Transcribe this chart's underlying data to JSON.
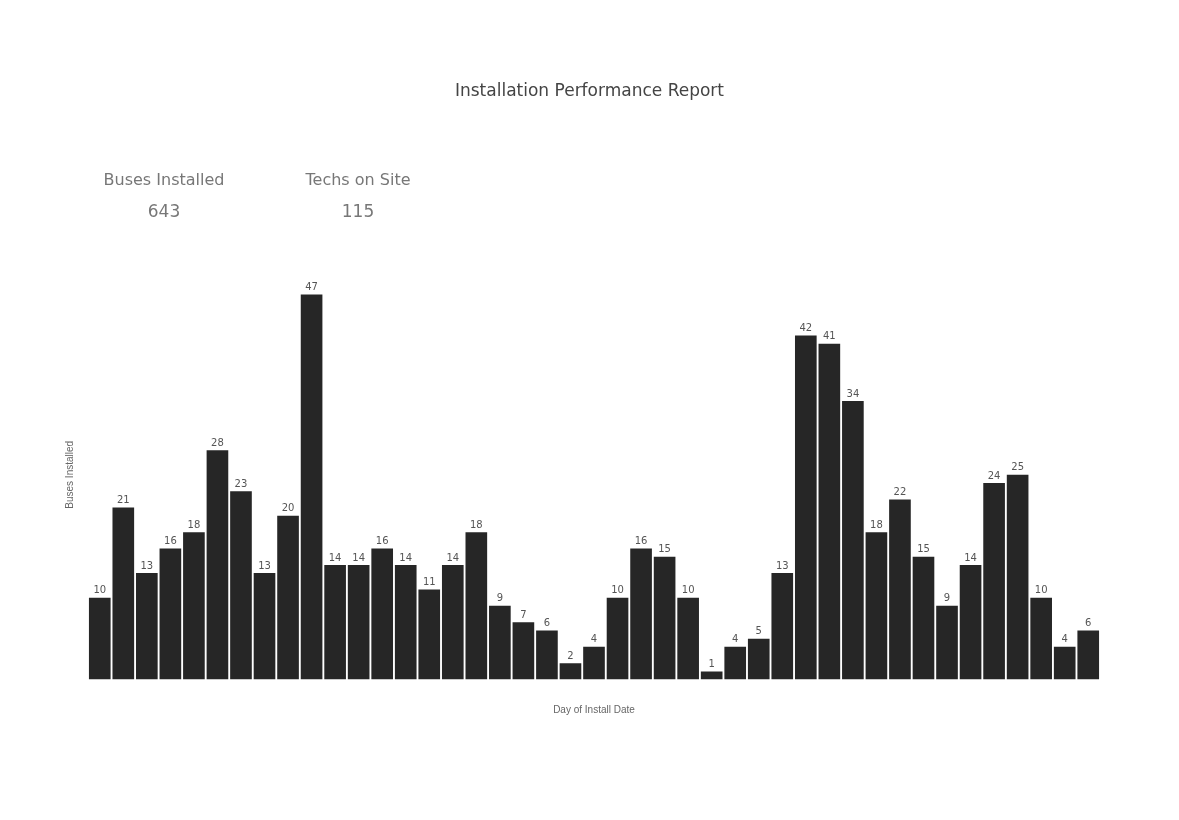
{
  "chart_data": {
    "type": "bar",
    "title": "Installation Performance Report",
    "xlabel": "Day of Install Date",
    "ylabel": "Buses Installed",
    "annotations": [
      "Buses Installed",
      "643",
      "Techs on Site",
      "115"
    ],
    "categories": [
      null,
      null,
      null,
      null,
      null,
      null,
      null,
      null,
      null,
      null,
      null,
      null,
      null,
      null,
      null,
      null,
      null,
      null,
      null,
      null,
      null,
      null,
      null,
      null,
      null,
      null,
      null,
      null,
      null,
      null,
      null,
      null,
      null,
      null,
      null,
      null,
      null,
      null,
      null,
      null,
      null,
      null,
      null
    ],
    "values": [
      10,
      21,
      13,
      16,
      18,
      28,
      23,
      13,
      20,
      47,
      14,
      14,
      16,
      14,
      11,
      14,
      18,
      9,
      7,
      6,
      2,
      4,
      10,
      16,
      15,
      10,
      1,
      4,
      5,
      13,
      42,
      41,
      34,
      18,
      22,
      15,
      9,
      14,
      24,
      25,
      10,
      4,
      6
    ],
    "color": "#262626",
    "data_labels": true,
    "grid": false,
    "legend": false
  }
}
